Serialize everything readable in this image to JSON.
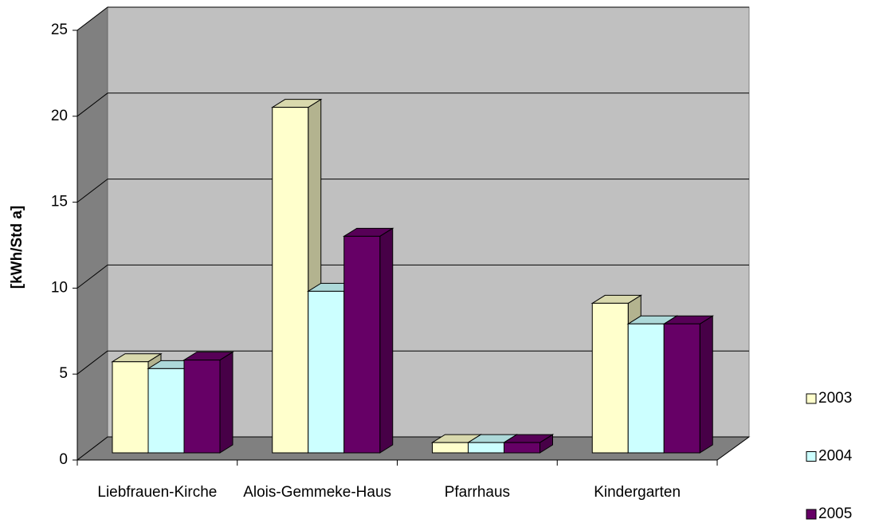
{
  "chart_data": {
    "type": "bar3d",
    "y_label": "[kWh/Std a]",
    "categories": [
      "Liebfrauen-Kirche",
      "Alois-Gemmeke-Haus",
      "Pfarrhaus",
      "Kindergarten"
    ],
    "series": [
      {
        "name": "2003",
        "color": "#ffffcc",
        "values": [
          5.3,
          20.1,
          0.6,
          8.7
        ]
      },
      {
        "name": "2004",
        "color": "#ccffff",
        "values": [
          4.9,
          9.4,
          0.6,
          7.5
        ]
      },
      {
        "name": "2005",
        "color": "#660066",
        "values": [
          5.4,
          12.6,
          0.6,
          7.5
        ]
      }
    ],
    "ylim": [
      0,
      25
    ],
    "yticks": [
      0,
      5,
      10,
      15,
      20,
      25
    ],
    "grid": true,
    "legend": "right"
  }
}
